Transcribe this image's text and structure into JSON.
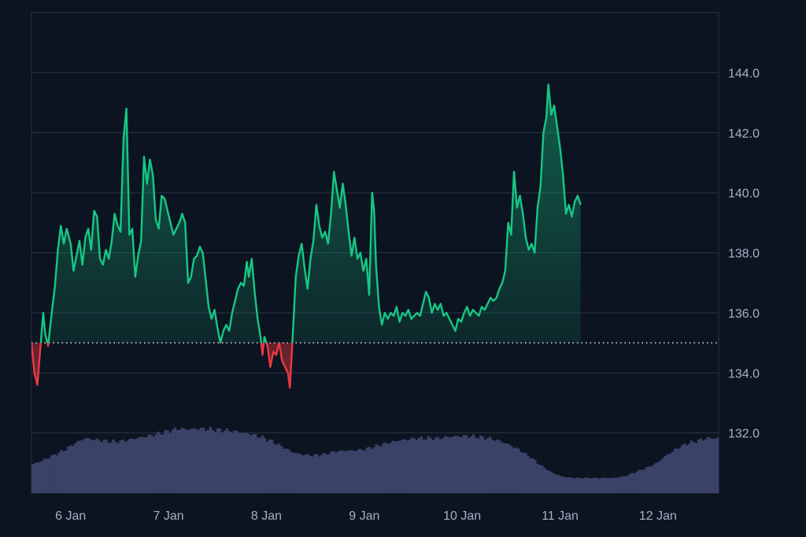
{
  "colors": {
    "background": "#0d1421",
    "grid": "#2b3344",
    "frame": "#2b3344",
    "up_line": "#16c784",
    "down_line": "#ea3943",
    "baseline_dots": "#cfd6e4",
    "volume": "#3a4268",
    "tick_text": "#a6b0c3"
  },
  "chart_data": {
    "type": "area",
    "title": "",
    "xlabel": "",
    "ylabel": "",
    "baseline": 135.0,
    "ylim": [
      130.0,
      146.0
    ],
    "yticks": [
      132.0,
      134.0,
      136.0,
      138.0,
      140.0,
      142.0,
      144.0
    ],
    "ytick_labels": [
      "132.0",
      "134.0",
      "136.0",
      "138.0",
      "140.0",
      "142.0",
      "144.0"
    ],
    "xlim": [
      5.6,
      12.62
    ],
    "xticks": [
      6,
      7,
      8,
      9,
      10,
      11,
      12
    ],
    "xtick_labels": [
      "6 Jan",
      "7 Jan",
      "8 Jan",
      "9 Jan",
      "10 Jan",
      "11 Jan",
      "12 Jan"
    ],
    "grid": true,
    "price": [
      [
        5.6,
        135.0
      ],
      [
        5.63,
        134.0
      ],
      [
        5.66,
        133.6
      ],
      [
        5.69,
        134.8
      ],
      [
        5.72,
        136.0
      ],
      [
        5.74,
        135.3
      ],
      [
        5.77,
        134.9
      ],
      [
        5.8,
        135.8
      ],
      [
        5.84,
        136.9
      ],
      [
        5.87,
        138.1
      ],
      [
        5.9,
        138.9
      ],
      [
        5.93,
        138.3
      ],
      [
        5.96,
        138.8
      ],
      [
        6.0,
        138.3
      ],
      [
        6.03,
        137.4
      ],
      [
        6.06,
        137.9
      ],
      [
        6.09,
        138.4
      ],
      [
        6.12,
        137.6
      ],
      [
        6.15,
        138.5
      ],
      [
        6.18,
        138.8
      ],
      [
        6.21,
        138.1
      ],
      [
        6.24,
        139.4
      ],
      [
        6.27,
        139.2
      ],
      [
        6.3,
        137.8
      ],
      [
        6.33,
        137.6
      ],
      [
        6.36,
        138.1
      ],
      [
        6.39,
        137.8
      ],
      [
        6.42,
        138.4
      ],
      [
        6.45,
        139.3
      ],
      [
        6.48,
        138.9
      ],
      [
        6.51,
        138.7
      ],
      [
        6.54,
        141.8
      ],
      [
        6.57,
        142.8
      ],
      [
        6.6,
        138.6
      ],
      [
        6.63,
        138.8
      ],
      [
        6.66,
        137.2
      ],
      [
        6.69,
        137.9
      ],
      [
        6.72,
        138.4
      ],
      [
        6.75,
        141.2
      ],
      [
        6.78,
        140.3
      ],
      [
        6.81,
        141.1
      ],
      [
        6.84,
        140.6
      ],
      [
        6.87,
        139.1
      ],
      [
        6.9,
        138.8
      ],
      [
        6.93,
        139.9
      ],
      [
        6.96,
        139.8
      ],
      [
        6.99,
        139.4
      ],
      [
        7.02,
        139.0
      ],
      [
        7.05,
        138.6
      ],
      [
        7.08,
        138.8
      ],
      [
        7.11,
        139.0
      ],
      [
        7.14,
        139.3
      ],
      [
        7.17,
        139.0
      ],
      [
        7.2,
        137.0
      ],
      [
        7.23,
        137.2
      ],
      [
        7.26,
        137.8
      ],
      [
        7.29,
        137.9
      ],
      [
        7.32,
        138.2
      ],
      [
        7.35,
        138.0
      ],
      [
        7.38,
        137.1
      ],
      [
        7.41,
        136.2
      ],
      [
        7.44,
        135.8
      ],
      [
        7.47,
        136.1
      ],
      [
        7.5,
        135.5
      ],
      [
        7.53,
        135.0
      ],
      [
        7.56,
        135.4
      ],
      [
        7.59,
        135.6
      ],
      [
        7.62,
        135.4
      ],
      [
        7.65,
        136.0
      ],
      [
        7.68,
        136.4
      ],
      [
        7.71,
        136.8
      ],
      [
        7.74,
        137.0
      ],
      [
        7.77,
        136.9
      ],
      [
        7.8,
        137.7
      ],
      [
        7.82,
        137.2
      ],
      [
        7.85,
        137.8
      ],
      [
        7.88,
        136.7
      ],
      [
        7.91,
        135.8
      ],
      [
        7.94,
        135.2
      ],
      [
        7.96,
        134.6
      ],
      [
        7.98,
        135.2
      ],
      [
        8.01,
        134.9
      ],
      [
        8.04,
        134.2
      ],
      [
        8.07,
        134.7
      ],
      [
        8.1,
        134.6
      ],
      [
        8.13,
        135.0
      ],
      [
        8.16,
        134.4
      ],
      [
        8.19,
        134.2
      ],
      [
        8.22,
        134.0
      ],
      [
        8.24,
        133.5
      ],
      [
        8.27,
        135.3
      ],
      [
        8.3,
        137.2
      ],
      [
        8.33,
        137.9
      ],
      [
        8.36,
        138.3
      ],
      [
        8.39,
        137.5
      ],
      [
        8.42,
        136.8
      ],
      [
        8.45,
        137.8
      ],
      [
        8.48,
        138.4
      ],
      [
        8.51,
        139.6
      ],
      [
        8.54,
        138.9
      ],
      [
        8.57,
        138.5
      ],
      [
        8.6,
        138.7
      ],
      [
        8.63,
        138.3
      ],
      [
        8.66,
        139.3
      ],
      [
        8.69,
        140.7
      ],
      [
        8.72,
        140.1
      ],
      [
        8.75,
        139.5
      ],
      [
        8.78,
        140.3
      ],
      [
        8.81,
        139.6
      ],
      [
        8.84,
        138.7
      ],
      [
        8.87,
        137.9
      ],
      [
        8.9,
        138.5
      ],
      [
        8.93,
        137.8
      ],
      [
        8.96,
        138.0
      ],
      [
        8.99,
        137.4
      ],
      [
        9.02,
        137.8
      ],
      [
        9.05,
        136.6
      ],
      [
        9.08,
        140.0
      ],
      [
        9.1,
        139.4
      ],
      [
        9.12,
        137.6
      ],
      [
        9.15,
        136.2
      ],
      [
        9.18,
        135.6
      ],
      [
        9.21,
        136.0
      ],
      [
        9.24,
        135.8
      ],
      [
        9.27,
        136.0
      ],
      [
        9.3,
        135.9
      ],
      [
        9.33,
        136.2
      ],
      [
        9.36,
        135.7
      ],
      [
        9.39,
        136.0
      ],
      [
        9.42,
        135.9
      ],
      [
        9.45,
        136.1
      ],
      [
        9.48,
        135.8
      ],
      [
        9.51,
        135.9
      ],
      [
        9.54,
        136.0
      ],
      [
        9.57,
        135.9
      ],
      [
        9.6,
        136.3
      ],
      [
        9.63,
        136.7
      ],
      [
        9.66,
        136.5
      ],
      [
        9.69,
        136.0
      ],
      [
        9.72,
        136.3
      ],
      [
        9.75,
        136.1
      ],
      [
        9.78,
        136.3
      ],
      [
        9.81,
        135.9
      ],
      [
        9.84,
        136.0
      ],
      [
        9.87,
        135.8
      ],
      [
        9.9,
        135.6
      ],
      [
        9.93,
        135.4
      ],
      [
        9.96,
        135.8
      ],
      [
        9.99,
        135.7
      ],
      [
        10.02,
        136.0
      ],
      [
        10.05,
        136.2
      ],
      [
        10.08,
        135.9
      ],
      [
        10.11,
        136.1
      ],
      [
        10.14,
        136.0
      ],
      [
        10.17,
        135.9
      ],
      [
        10.2,
        136.2
      ],
      [
        10.23,
        136.1
      ],
      [
        10.26,
        136.3
      ],
      [
        10.29,
        136.5
      ],
      [
        10.32,
        136.4
      ],
      [
        10.35,
        136.5
      ],
      [
        10.38,
        136.8
      ],
      [
        10.41,
        137.0
      ],
      [
        10.44,
        137.4
      ],
      [
        10.47,
        139.0
      ],
      [
        10.5,
        138.6
      ],
      [
        10.53,
        140.7
      ],
      [
        10.56,
        139.5
      ],
      [
        10.59,
        139.9
      ],
      [
        10.62,
        139.3
      ],
      [
        10.65,
        138.5
      ],
      [
        10.68,
        138.1
      ],
      [
        10.71,
        138.3
      ],
      [
        10.74,
        138.0
      ],
      [
        10.77,
        139.5
      ],
      [
        10.8,
        140.2
      ],
      [
        10.83,
        142.0
      ],
      [
        10.86,
        142.5
      ],
      [
        10.88,
        143.6
      ],
      [
        10.91,
        142.6
      ],
      [
        10.94,
        142.9
      ],
      [
        10.97,
        142.2
      ],
      [
        11.0,
        141.5
      ],
      [
        11.03,
        140.6
      ],
      [
        11.06,
        139.3
      ],
      [
        11.09,
        139.6
      ],
      [
        11.12,
        139.2
      ],
      [
        11.15,
        139.7
      ],
      [
        11.18,
        139.9
      ],
      [
        11.21,
        139.6
      ]
    ],
    "volume_relative": [
      0.42,
      0.48,
      0.55,
      0.62,
      0.72,
      0.8,
      0.78,
      0.76,
      0.75,
      0.77,
      0.8,
      0.83,
      0.86,
      0.9,
      0.94,
      0.93,
      0.94,
      0.93,
      0.92,
      0.91,
      0.89,
      0.86,
      0.82,
      0.76,
      0.68,
      0.6,
      0.56,
      0.55,
      0.56,
      0.6,
      0.62,
      0.62,
      0.64,
      0.68,
      0.72,
      0.76,
      0.78,
      0.8,
      0.8,
      0.8,
      0.82,
      0.83,
      0.83,
      0.82,
      0.8,
      0.76,
      0.7,
      0.62,
      0.52,
      0.4,
      0.3,
      0.24,
      0.22,
      0.22,
      0.22,
      0.22,
      0.22,
      0.24,
      0.3,
      0.36,
      0.42,
      0.54,
      0.64,
      0.72,
      0.76,
      0.8,
      0.8
    ]
  }
}
